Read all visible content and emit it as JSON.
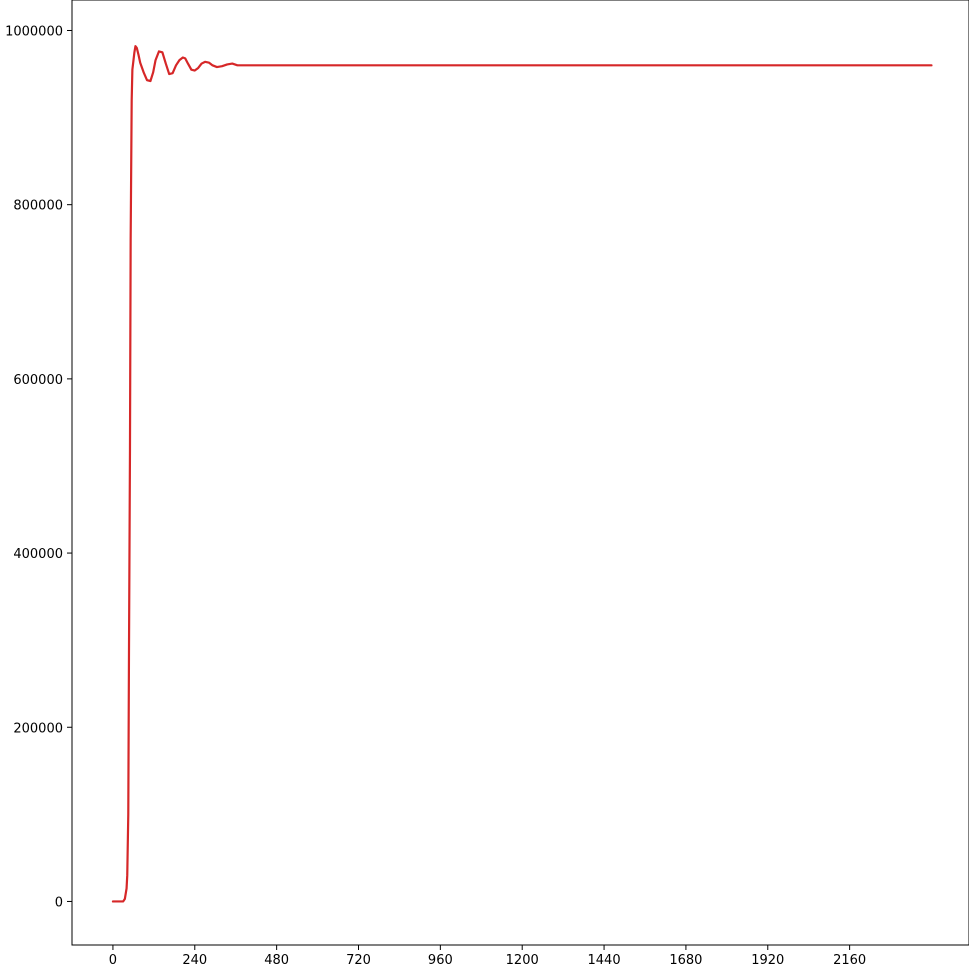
{
  "chart_data": {
    "type": "line",
    "title": "",
    "xlabel": "",
    "ylabel": "",
    "xlim": [
      -120,
      2510
    ],
    "ylim": [
      -50000,
      1035000
    ],
    "x_ticks": [
      0,
      240,
      480,
      720,
      960,
      1200,
      1440,
      1680,
      1920,
      2160
    ],
    "y_ticks": [
      0,
      200000,
      400000,
      600000,
      800000,
      1000000
    ],
    "x_tick_labels": [
      "0",
      "240",
      "480",
      "720",
      "960",
      "1200",
      "1440",
      "1680",
      "1920",
      "2160"
    ],
    "y_tick_labels": [
      "0",
      "200000",
      "400000",
      "600000",
      "800000",
      "1000000"
    ],
    "grid": false,
    "legend": "none",
    "series": [
      {
        "color": "#d62728",
        "x": [
          0,
          30,
          35,
          40,
          42,
          45,
          47,
          50,
          52,
          55,
          57,
          60,
          63,
          66,
          70,
          75,
          80,
          90,
          100,
          110,
          118,
          125,
          135,
          145,
          155,
          165,
          175,
          185,
          195,
          205,
          212,
          220,
          230,
          240,
          250,
          260,
          270,
          282,
          292,
          305,
          320,
          335,
          350,
          365,
          400,
          450,
          500,
          600,
          800,
          1000,
          1200,
          1500,
          1800,
          2100,
          2400
        ],
        "y": [
          0,
          0,
          3000,
          15000,
          30000,
          100000,
          280000,
          520000,
          760000,
          920000,
          955000,
          965000,
          975000,
          982000,
          980000,
          972000,
          963000,
          952000,
          943000,
          942000,
          952000,
          966000,
          976000,
          975000,
          962000,
          950000,
          951000,
          960000,
          966000,
          969000,
          968000,
          962000,
          955000,
          954000,
          957000,
          962000,
          964000,
          963000,
          960000,
          958000,
          959000,
          961000,
          962000,
          960000,
          960000,
          960000,
          960000,
          960000,
          960000,
          960000,
          960000,
          960000,
          960000,
          960000,
          960000
        ]
      }
    ]
  }
}
